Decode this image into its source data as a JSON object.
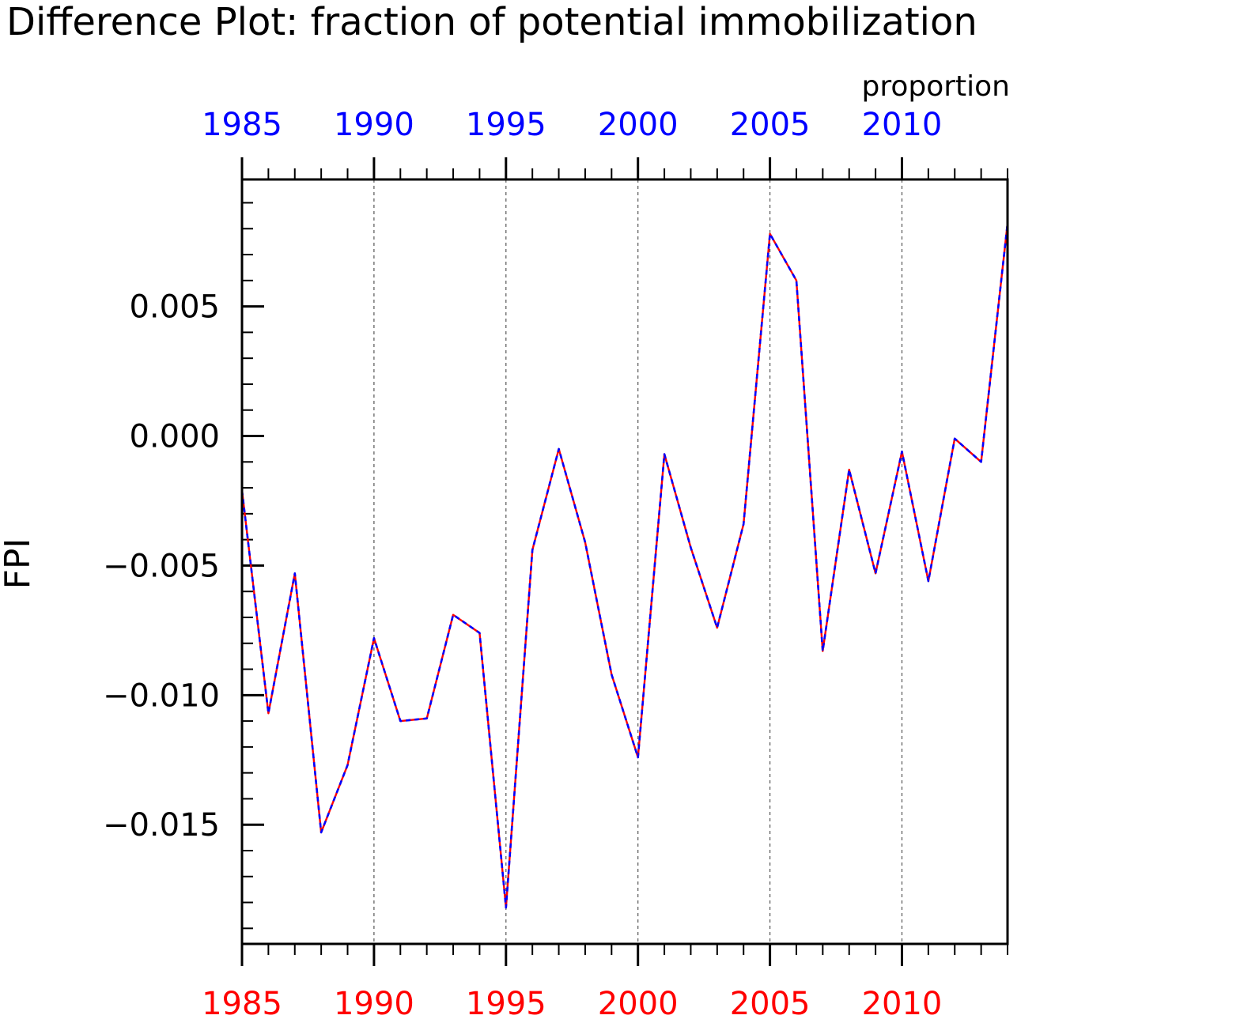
{
  "chart_data": {
    "type": "line",
    "title": "Difference Plot: fraction of potential immobilization",
    "units": "proportion",
    "ylabel": "FPI",
    "xlabel": "",
    "xlim": [
      1985,
      2014
    ],
    "ylim": [
      -0.0196,
      0.0099
    ],
    "x_major_ticks": [
      1985,
      1990,
      1995,
      2000,
      2005,
      2010
    ],
    "x_tick_labels": [
      "1985",
      "1990",
      "1995",
      "2000",
      "2005",
      "2010"
    ],
    "y_major_ticks": [
      0.005,
      0.0,
      -0.005,
      -0.01,
      -0.015
    ],
    "y_tick_labels": [
      "0.005",
      "0.000",
      "−0.005",
      "−0.010",
      "−0.015"
    ],
    "vertical_grid": true,
    "x": [
      1985,
      1986,
      1987,
      1988,
      1989,
      1990,
      1991,
      1992,
      1993,
      1994,
      1995,
      1996,
      1997,
      1998,
      1999,
      2000,
      2001,
      2002,
      2003,
      2004,
      2005,
      2006,
      2007,
      2008,
      2009,
      2010,
      2011,
      2012,
      2013,
      2014
    ],
    "series": [
      {
        "color": "#ff0000",
        "style": "solid",
        "values": [
          -0.0021,
          -0.0107,
          -0.0053,
          -0.0153,
          -0.0127,
          -0.0078,
          -0.011,
          -0.0109,
          -0.0069,
          -0.0076,
          -0.0182,
          -0.0044,
          -0.0005,
          -0.0041,
          -0.0092,
          -0.0124,
          -0.0007,
          -0.0043,
          -0.0074,
          -0.0034,
          0.0078,
          0.006,
          -0.0083,
          -0.0013,
          -0.0053,
          -0.0006,
          -0.0056,
          -0.0001,
          -0.001,
          0.0082
        ]
      },
      {
        "color": "#0000ff",
        "style": "dashed",
        "values": [
          -0.0021,
          -0.0107,
          -0.0053,
          -0.0153,
          -0.0127,
          -0.0078,
          -0.011,
          -0.0109,
          -0.0069,
          -0.0076,
          -0.0182,
          -0.0044,
          -0.0005,
          -0.0041,
          -0.0092,
          -0.0124,
          -0.0007,
          -0.0043,
          -0.0074,
          -0.0034,
          0.0078,
          0.006,
          -0.0083,
          -0.0013,
          -0.0053,
          -0.0006,
          -0.0056,
          -0.0001,
          -0.001,
          0.0082
        ]
      }
    ],
    "top_axis_color": "#0000ff",
    "bottom_axis_color": "#ff0000",
    "axis_color": "#000000",
    "grid_color": "#555555"
  }
}
